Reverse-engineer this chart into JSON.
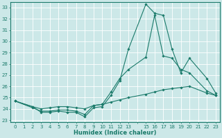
{
  "xlabel": "Humidex (Indice chaleur)",
  "bg_color": "#cce8e8",
  "grid_color": "#ffffff",
  "line_color": "#1a7a6a",
  "xlim": [
    -0.5,
    23.5
  ],
  "ylim": [
    22.8,
    33.5
  ],
  "xtick_labels": [
    "0",
    "1",
    "2",
    "3",
    "4",
    "5",
    "6",
    "7",
    "8",
    "9",
    "10",
    "11",
    "12",
    "13",
    "",
    "15",
    "16",
    "17",
    "18",
    "19",
    "20",
    "21",
    "22",
    "23"
  ],
  "yticks": [
    23,
    24,
    25,
    26,
    27,
    28,
    29,
    30,
    31,
    32,
    33
  ],
  "series": [
    {
      "x": [
        0,
        2,
        3,
        4,
        5,
        6,
        7,
        8,
        9,
        10,
        11,
        12,
        13,
        15,
        16,
        17,
        18,
        19,
        20,
        22,
        23
      ],
      "y": [
        24.7,
        24.2,
        23.7,
        23.7,
        23.8,
        23.7,
        23.7,
        23.3,
        24.1,
        24.2,
        25.2,
        26.5,
        29.3,
        33.3,
        32.5,
        32.3,
        29.3,
        27.2,
        28.5,
        26.7,
        25.4
      ]
    },
    {
      "x": [
        0,
        2,
        3,
        4,
        5,
        6,
        7,
        8,
        9,
        10,
        11,
        12,
        13,
        15,
        16,
        17,
        18,
        19,
        20,
        22,
        23
      ],
      "y": [
        24.7,
        24.1,
        23.8,
        23.8,
        23.9,
        23.9,
        23.8,
        23.5,
        24.3,
        24.4,
        25.5,
        26.7,
        27.5,
        28.6,
        32.3,
        28.7,
        28.5,
        27.5,
        27.2,
        25.6,
        25.2
      ]
    },
    {
      "x": [
        0,
        2,
        3,
        4,
        5,
        6,
        7,
        8,
        9,
        10,
        11,
        12,
        13,
        15,
        16,
        17,
        18,
        19,
        20,
        22,
        23
      ],
      "y": [
        24.7,
        24.2,
        24.0,
        24.1,
        24.2,
        24.2,
        24.1,
        24.0,
        24.3,
        24.4,
        24.6,
        24.8,
        25.0,
        25.3,
        25.5,
        25.7,
        25.8,
        25.9,
        26.0,
        25.4,
        25.2
      ]
    }
  ]
}
